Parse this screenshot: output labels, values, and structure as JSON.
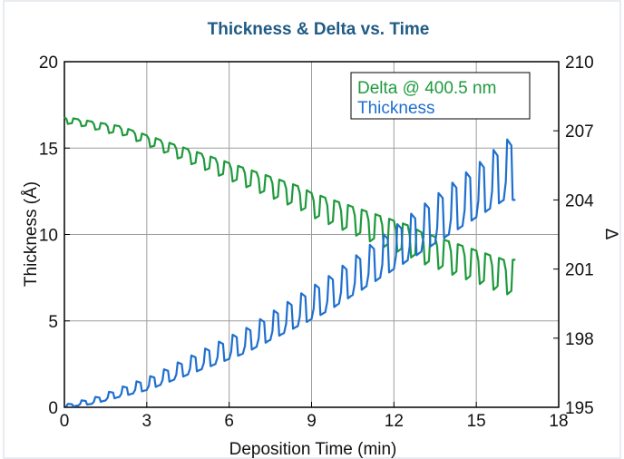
{
  "chart_data": {
    "type": "line",
    "title": "Thickness & Delta vs. Time",
    "xlabel": "Deposition Time (min)",
    "ylabel_left": "Thickness (Å)",
    "ylabel_right": "Δ",
    "xlim": [
      0,
      18
    ],
    "ylim_left": [
      0,
      20
    ],
    "ylim_right": [
      195,
      210
    ],
    "xticks": [
      "0",
      "3",
      "6",
      "9",
      "12",
      "15",
      "18"
    ],
    "yticks_left": [
      "0",
      "5",
      "10",
      "15",
      "20"
    ],
    "yticks_right": [
      "195",
      "198",
      "201",
      "204",
      "207",
      "210"
    ],
    "grid": true,
    "legend_position": "top-right",
    "series": [
      {
        "name": "Delta @ 400.5 nm",
        "axis": "right",
        "color": "#1e9a3c",
        "x": [
          0.0,
          0.5,
          1.0,
          1.5,
          2.0,
          2.5,
          3.0,
          3.5,
          4.0,
          4.5,
          5.0,
          5.5,
          6.0,
          6.5,
          7.0,
          7.5,
          8.0,
          8.5,
          9.0,
          9.5,
          10.0,
          10.5,
          11.0,
          11.5,
          12.0,
          12.5,
          13.0,
          13.5,
          14.0,
          14.5,
          15.0,
          15.5,
          16.0
        ],
        "y": [
          207.6,
          207.5,
          207.4,
          207.3,
          207.2,
          207.0,
          206.8,
          206.6,
          206.4,
          206.2,
          206.0,
          205.8,
          205.6,
          205.4,
          205.2,
          205.0,
          204.8,
          204.6,
          204.3,
          204.1,
          203.9,
          203.7,
          203.5,
          203.3,
          203.1,
          202.9,
          202.6,
          202.4,
          202.2,
          202.0,
          201.8,
          201.6,
          201.4
        ],
        "dip_amplitude": [
          0.3,
          0.3,
          0.35,
          0.4,
          0.4,
          0.45,
          0.5,
          0.55,
          0.6,
          0.65,
          0.7,
          0.75,
          0.8,
          0.85,
          0.9,
          0.95,
          1.0,
          1.05,
          1.1,
          1.15,
          1.2,
          1.25,
          1.3,
          1.35,
          1.35,
          1.4,
          1.4,
          1.4,
          1.45,
          1.45,
          1.45,
          1.5,
          1.5
        ]
      },
      {
        "name": "Thickness",
        "axis": "left",
        "color": "#1f6fcf",
        "x": [
          0.0,
          0.5,
          1.0,
          1.5,
          2.0,
          2.5,
          3.0,
          3.5,
          4.0,
          4.5,
          5.0,
          5.5,
          6.0,
          6.5,
          7.0,
          7.5,
          8.0,
          8.5,
          9.0,
          9.5,
          10.0,
          10.5,
          11.0,
          11.5,
          12.0,
          12.5,
          13.0,
          13.5,
          14.0,
          14.5,
          15.0,
          15.5,
          16.0
        ],
        "y": [
          0.0,
          0.1,
          0.2,
          0.4,
          0.6,
          0.8,
          1.0,
          1.3,
          1.6,
          1.9,
          2.2,
          2.5,
          2.8,
          3.1,
          3.5,
          3.9,
          4.3,
          4.7,
          5.1,
          5.5,
          6.0,
          6.5,
          7.0,
          7.5,
          8.0,
          8.5,
          9.0,
          9.5,
          10.0,
          10.5,
          11.0,
          11.5,
          12.0
        ],
        "spike_amplitude": [
          0.2,
          0.3,
          0.4,
          0.5,
          0.6,
          0.7,
          0.8,
          0.9,
          1.0,
          1.1,
          1.2,
          1.3,
          1.4,
          1.5,
          1.6,
          1.7,
          1.8,
          1.9,
          2.0,
          2.1,
          2.2,
          2.3,
          2.4,
          2.5,
          2.6,
          2.7,
          2.8,
          2.9,
          3.0,
          3.1,
          3.2,
          3.4,
          3.5
        ]
      }
    ]
  }
}
